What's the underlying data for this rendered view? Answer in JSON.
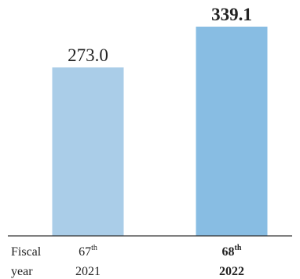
{
  "chart_data": {
    "type": "bar",
    "title": "",
    "xlabel": "",
    "ylabel": "",
    "ylim": [
      0,
      339.1
    ],
    "grid": false,
    "axis_label": [
      "Fiscal",
      "year"
    ],
    "categories": [
      {
        "ordinal": "67",
        "suffix": "th",
        "year": "2021",
        "bold": false,
        "color": "#aacde8"
      },
      {
        "ordinal": "68",
        "suffix": "th",
        "year": "2022",
        "bold": true,
        "color": "#88bde3"
      }
    ],
    "values": [
      273.0,
      339.1
    ],
    "value_labels": [
      "273.0",
      "339.1"
    ]
  }
}
